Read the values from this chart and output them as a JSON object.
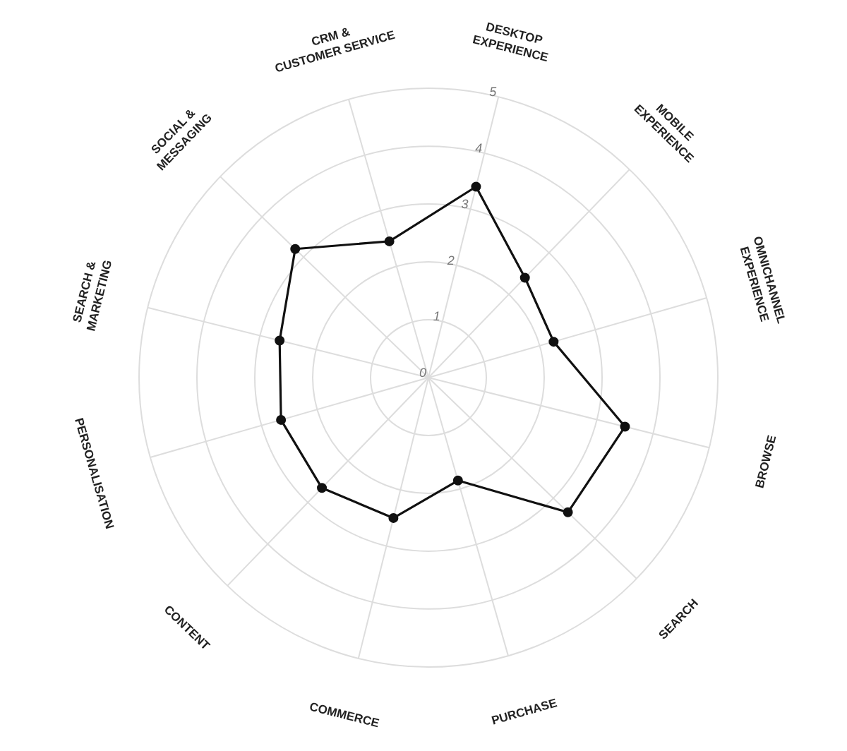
{
  "chart_data": {
    "type": "radar",
    "categories": [
      "DESKTOP EXPERIENCE",
      "MOBILE EXPERIENCE",
      "OMNICHANNEL EXPERIENCE",
      "BROWSE",
      "SEARCH",
      "PURCHASE",
      "COMMERCE",
      "CONTENT",
      "PERSONALISATION",
      "SEARCH & MARKETING",
      "SOCIAL & MESSAGING",
      "CRM & CUSTOMER SERVICE"
    ],
    "series": [
      {
        "color": "#111111",
        "values": [
          3.4,
          2.4,
          2.25,
          3.5,
          3.35,
          1.85,
          2.5,
          2.65,
          2.65,
          2.65,
          3.2,
          2.45
        ]
      }
    ],
    "ylim": [
      0,
      5
    ],
    "yticks": [
      0,
      1,
      2,
      3,
      4,
      5
    ],
    "grid": true,
    "marker": "circle",
    "line_style": "solid"
  }
}
